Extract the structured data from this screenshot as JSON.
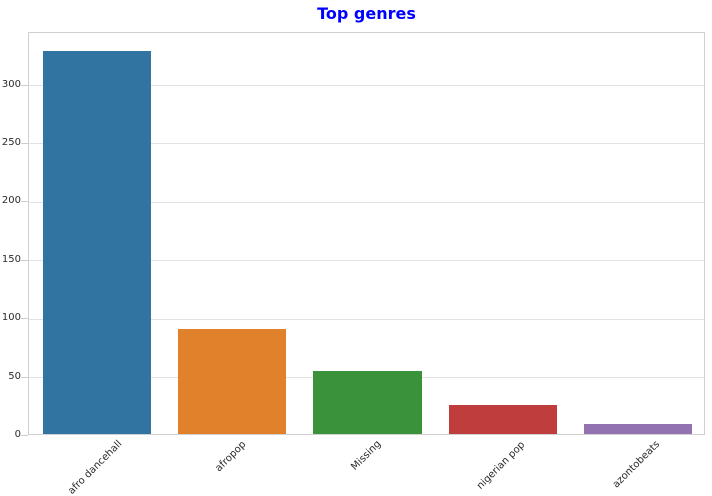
{
  "chart_data": {
    "type": "bar",
    "title": "Top genres",
    "categories": [
      "afro dancehall",
      "afropop",
      "Missing",
      "nigerian pop",
      "azontobeats"
    ],
    "values": [
      328,
      90,
      54,
      25,
      9
    ],
    "xlabel": "",
    "ylabel": "",
    "ylim": [
      0,
      345
    ],
    "yticks": [
      0,
      50,
      100,
      150,
      200,
      250,
      300
    ],
    "grid": "horizontal",
    "legend": "none",
    "x_tick_rotation": 45,
    "bar_colors": [
      "#3274a1",
      "#e1812c",
      "#3a923a",
      "#c03d3e",
      "#9372b2"
    ],
    "title_color": "#0000ff",
    "grid_color": "#e2e2e2",
    "spine_color": "#d0d0d0",
    "tick_text_color": "#2b2b2b"
  }
}
